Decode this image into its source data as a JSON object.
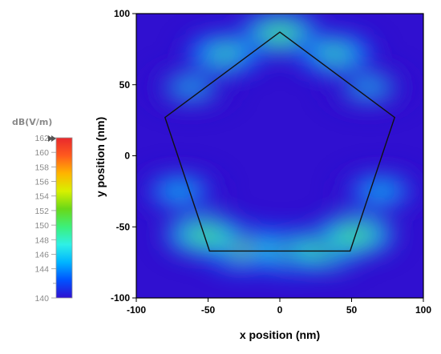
{
  "chart_data": {
    "type": "heatmap",
    "title": "",
    "xlabel": "x position (nm)",
    "ylabel": "y position (nm)",
    "xlim": [
      -100,
      100
    ],
    "ylim": [
      -100,
      100
    ],
    "x_ticks": [
      "-100",
      "-50",
      "0",
      "50",
      "100"
    ],
    "y_ticks": [
      "100",
      "50",
      "0",
      "-50",
      "-100"
    ],
    "colorbar": {
      "unit": "dB(V/m)",
      "range": [
        140,
        162
      ],
      "tick_labels": [
        "162",
        "160",
        "158",
        "156",
        "154",
        "152",
        "150",
        "148",
        "146",
        "144",
        "140"
      ]
    },
    "background_level": 140,
    "outline": {
      "shape": "pentagon",
      "vertices": [
        [
          0,
          87
        ],
        [
          80,
          27
        ],
        [
          49,
          -67
        ],
        [
          -49,
          -67
        ],
        [
          -80,
          27
        ]
      ]
    },
    "hotspots": [
      {
        "x": 0,
        "y": 86,
        "level": 153
      },
      {
        "x": -38,
        "y": 72,
        "level": 151
      },
      {
        "x": 38,
        "y": 72,
        "level": 151
      },
      {
        "x": -62,
        "y": 48,
        "level": 147
      },
      {
        "x": 62,
        "y": 48,
        "level": 147
      },
      {
        "x": -25,
        "y": -65,
        "level": 154
      },
      {
        "x": 10,
        "y": -67,
        "level": 154
      },
      {
        "x": 30,
        "y": -66,
        "level": 153
      },
      {
        "x": -52,
        "y": -56,
        "level": 153
      },
      {
        "x": 52,
        "y": -56,
        "level": 153
      },
      {
        "x": -70,
        "y": -25,
        "level": 148
      },
      {
        "x": 70,
        "y": -25,
        "level": 148
      }
    ],
    "colors": {
      "colormap": [
        "#3010d0",
        "#0052ff",
        "#00b4ff",
        "#2ff0e6",
        "#3cf07a",
        "#6ad818",
        "#d8f000",
        "#ffb400",
        "#ff5a1e",
        "#e8282d"
      ]
    }
  }
}
